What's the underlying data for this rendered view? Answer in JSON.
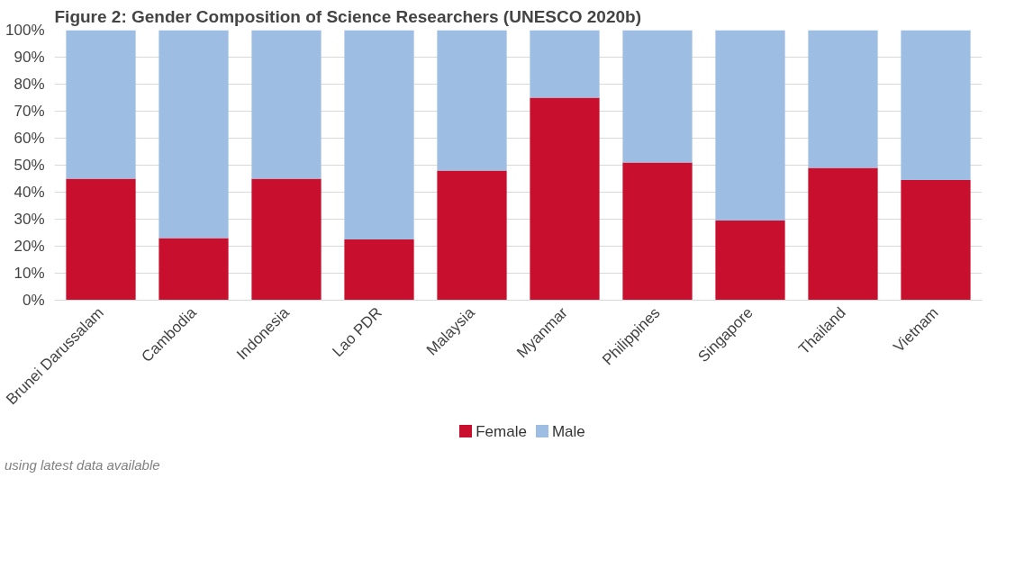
{
  "chart_data": {
    "type": "bar",
    "stacked": true,
    "title": "Figure 2: Gender Composition of Science Researchers (UNESCO 2020b)",
    "categories": [
      "Brunei Darussalam",
      "Cambodia",
      "Indonesia",
      "Lao PDR",
      "Malaysia",
      "Myanmar",
      "Philippines",
      "Singapore",
      "Thailand",
      "Vietnam"
    ],
    "series": [
      {
        "name": "Female",
        "color": "#c8102e",
        "values": [
          45,
          23,
          45,
          22.5,
          48,
          75,
          51,
          29.5,
          49,
          44.5
        ]
      },
      {
        "name": "Male",
        "color": "#9dbde3",
        "values": [
          55,
          77,
          55,
          77.5,
          52,
          25,
          49,
          70.5,
          51,
          55.5
        ]
      }
    ],
    "ylim": [
      0,
      100
    ],
    "yticks": [
      {
        "value": 0,
        "label": "0%"
      },
      {
        "value": 10,
        "label": "10%"
      },
      {
        "value": 20,
        "label": "20%"
      },
      {
        "value": 30,
        "label": "30%"
      },
      {
        "value": 40,
        "label": "40%"
      },
      {
        "value": 50,
        "label": "50%"
      },
      {
        "value": 60,
        "label": "60%"
      },
      {
        "value": 70,
        "label": "70%"
      },
      {
        "value": 80,
        "label": "80%"
      },
      {
        "value": 90,
        "label": "90%"
      },
      {
        "value": 100,
        "label": "100%"
      }
    ],
    "grid": "y",
    "legend": "bottom",
    "annotations": [
      "using latest data available"
    ]
  }
}
